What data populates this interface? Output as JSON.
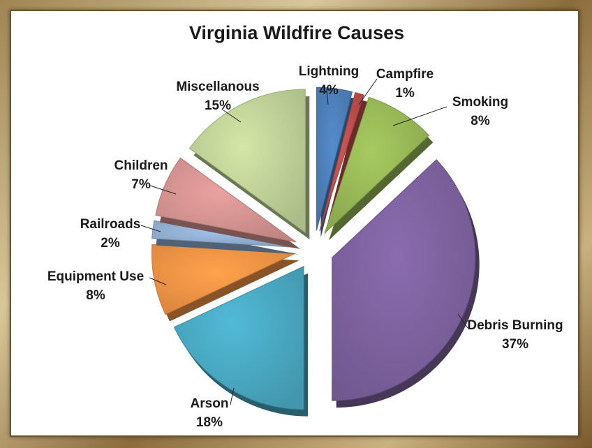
{
  "chart_data": {
    "type": "pie",
    "title": "Virginia Wildfire Causes",
    "slices": [
      {
        "label": "Lightning",
        "value": 4,
        "pct_label": "4%",
        "color": "#4f81bd"
      },
      {
        "label": "Campfire",
        "value": 1,
        "pct_label": "1%",
        "color": "#c0504d"
      },
      {
        "label": "Smoking",
        "value": 8,
        "pct_label": "8%",
        "color": "#9bbb59"
      },
      {
        "label": "Debris Burning",
        "value": 37,
        "pct_label": "37%",
        "color": "#8064a2"
      },
      {
        "label": "Arson",
        "value": 18,
        "pct_label": "18%",
        "color": "#4bacc6"
      },
      {
        "label": "Equipment Use",
        "value": 8,
        "pct_label": "8%",
        "color": "#f79646"
      },
      {
        "label": "Railroads",
        "value": 2,
        "pct_label": "2%",
        "color": "#95b3d7"
      },
      {
        "label": "Children",
        "value": 7,
        "pct_label": "7%",
        "color": "#d99694"
      },
      {
        "label": "Miscellanous",
        "value": 15,
        "pct_label": "15%",
        "color": "#c3d69b"
      }
    ],
    "exploded": true,
    "three_d": true
  }
}
